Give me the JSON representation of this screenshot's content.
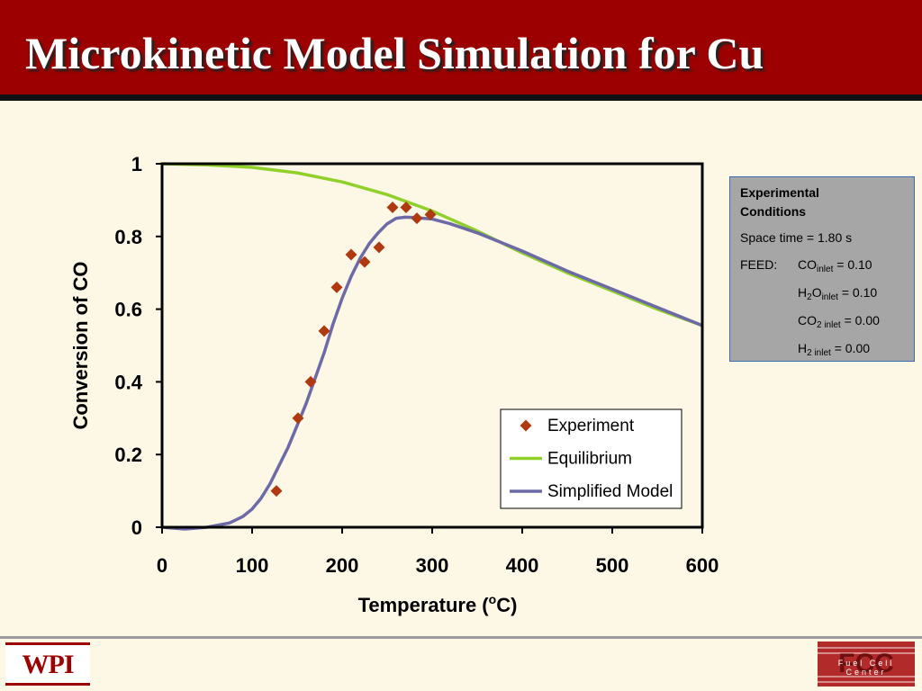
{
  "slide": {
    "title": "Microkinetic Model Simulation for Cu"
  },
  "chart_data": {
    "type": "line",
    "xlabel_main": "Temperature (",
    "xlabel_sup": "o",
    "xlabel_end": "C)",
    "ylabel": "Conversion of CO",
    "xlim": [
      0,
      600
    ],
    "ylim": [
      0,
      1
    ],
    "x_ticks": [
      "0",
      "100",
      "200",
      "300",
      "400",
      "500",
      "600"
    ],
    "y_ticks": [
      "0",
      "0.2",
      "0.4",
      "0.6",
      "0.8",
      "1"
    ],
    "grid": false,
    "legend_position": "lower-right",
    "series": [
      {
        "name": "Experiment",
        "kind": "scatter",
        "marker": "diamond",
        "color": "#b03a10",
        "x": [
          127,
          151,
          165,
          180,
          194,
          210,
          225,
          241,
          256,
          271,
          283,
          298
        ],
        "y": [
          0.1,
          0.3,
          0.4,
          0.54,
          0.66,
          0.75,
          0.73,
          0.77,
          0.88,
          0.88,
          0.85,
          0.86
        ]
      },
      {
        "name": "Equilibrium",
        "kind": "line",
        "color": "#8fd02a",
        "x": [
          0,
          50,
          100,
          150,
          200,
          250,
          300,
          350,
          400,
          450,
          500,
          550,
          600
        ],
        "y": [
          1.0,
          0.997,
          0.99,
          0.975,
          0.95,
          0.915,
          0.87,
          0.815,
          0.755,
          0.7,
          0.65,
          0.6,
          0.555
        ]
      },
      {
        "name": "Simplified Model",
        "kind": "line",
        "color": "#6d6aa8",
        "x": [
          0,
          25,
          50,
          75,
          90,
          100,
          110,
          120,
          130,
          140,
          150,
          160,
          170,
          180,
          190,
          200,
          210,
          220,
          230,
          240,
          250,
          260,
          270,
          280,
          290,
          300,
          320,
          350,
          400,
          450,
          500,
          550,
          600
        ],
        "y": [
          0.0,
          -0.005,
          0.0,
          0.012,
          0.03,
          0.05,
          0.08,
          0.12,
          0.17,
          0.22,
          0.28,
          0.34,
          0.41,
          0.48,
          0.56,
          0.63,
          0.69,
          0.74,
          0.78,
          0.81,
          0.835,
          0.85,
          0.853,
          0.852,
          0.85,
          0.848,
          0.835,
          0.81,
          0.76,
          0.705,
          0.655,
          0.605,
          0.555
        ]
      }
    ]
  },
  "conditions": {
    "heading_1": "Experimental",
    "heading_2": "Conditions",
    "space_time": "Space time = 1.80 s",
    "feed_label": "FEED:",
    "co_main": "CO",
    "co_sub": "inlet",
    "co_val": "= 0.10",
    "h2o_h": "H",
    "h2o_2": "2",
    "h2o_o": "O",
    "h2o_sub": "inlet",
    "h2o_val": "= 0.10",
    "co2_main": "CO",
    "co2_sub": "2 inlet",
    "co2_val": "= 0.00",
    "h2_main": "H",
    "h2_sub": "2 inlet",
    "h2_val": "= 0.00"
  },
  "logos": {
    "wpi": "WPI",
    "fcc": "FCC",
    "fcc_sub": "Fuel Cell Center"
  }
}
